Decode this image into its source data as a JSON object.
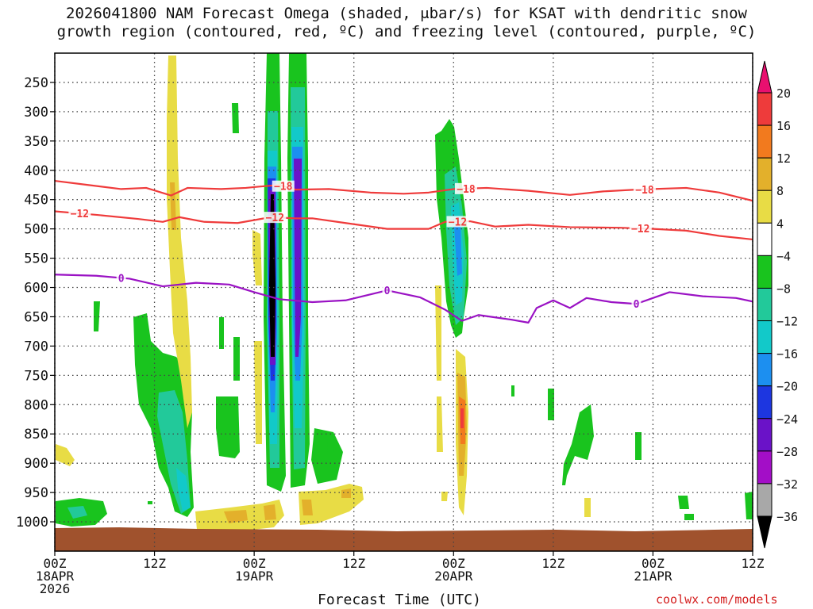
{
  "chart_data": {
    "type": "heatmap",
    "title_line1": "2026041800 NAM Forecast Omega (shaded, μbar/s) for KSAT with dendritic snow",
    "title_line2": "growth region (contoured, red, ºC) and freezing level (contoured, purple, ºC)",
    "xlabel": "Forecast Time (UTC)",
    "credit": "coolwx.com/models",
    "x_range_hours": [
      0,
      84
    ],
    "y_range_hpa": [
      200,
      1050
    ],
    "x_ticks": [
      {
        "hour": 0,
        "line1": "00Z",
        "line2": "18APR",
        "line3": "2026"
      },
      {
        "hour": 12,
        "line1": "12Z",
        "line2": "",
        "line3": ""
      },
      {
        "hour": 24,
        "line1": "00Z",
        "line2": "19APR",
        "line3": ""
      },
      {
        "hour": 36,
        "line1": "12Z",
        "line2": "",
        "line3": ""
      },
      {
        "hour": 48,
        "line1": "00Z",
        "line2": "20APR",
        "line3": ""
      },
      {
        "hour": 60,
        "line1": "12Z",
        "line2": "",
        "line3": ""
      },
      {
        "hour": 72,
        "line1": "00Z",
        "line2": "21APR",
        "line3": ""
      },
      {
        "hour": 84,
        "line1": "12Z",
        "line2": "",
        "line3": ""
      }
    ],
    "y_ticks": [
      250,
      300,
      350,
      400,
      450,
      500,
      550,
      600,
      650,
      700,
      750,
      800,
      850,
      900,
      950,
      1000
    ],
    "colorbar": {
      "labels": [
        "20",
        "16",
        "12",
        "8",
        "4",
        "−4",
        "−8",
        "−12",
        "−16",
        "−20",
        "−24",
        "−28",
        "−32",
        "−36"
      ],
      "colors": [
        "#e8106f",
        "#ee3b3b",
        "#f27a1e",
        "#e3b02b",
        "#e8dc45",
        "#ffffff",
        "#19c41e",
        "#22c99a",
        "#12c9c9",
        "#1c8ff0",
        "#1d36e0",
        "#6a12c8",
        "#a30ec7",
        "#a8a8a8",
        "#000000"
      ]
    },
    "contours": {
      "dgz_minus18": {
        "color": "#ef3b3b",
        "label": "−18",
        "points": [
          [
            0,
            418
          ],
          [
            4,
            425
          ],
          [
            8,
            432
          ],
          [
            11,
            430
          ],
          [
            14,
            443
          ],
          [
            16,
            430
          ],
          [
            20,
            432
          ],
          [
            23,
            430
          ],
          [
            24.5,
            428
          ],
          [
            27,
            425
          ],
          [
            29,
            433
          ],
          [
            33,
            432
          ],
          [
            38,
            438
          ],
          [
            42,
            440
          ],
          [
            45,
            438
          ],
          [
            48,
            432
          ],
          [
            52,
            430
          ],
          [
            57,
            435
          ],
          [
            62,
            442
          ],
          [
            66,
            436
          ],
          [
            70,
            433
          ],
          [
            76,
            430
          ],
          [
            80,
            438
          ],
          [
            84,
            452
          ]
        ],
        "label_hours": [
          27.5,
          49.5,
          71
        ]
      },
      "dgz_minus12": {
        "color": "#ef3b3b",
        "label": "−12",
        "points": [
          [
            0,
            470
          ],
          [
            5,
            476
          ],
          [
            10,
            483
          ],
          [
            13,
            488
          ],
          [
            15,
            480
          ],
          [
            18,
            488
          ],
          [
            22,
            490
          ],
          [
            26,
            480
          ],
          [
            29,
            482
          ],
          [
            31,
            482
          ],
          [
            35,
            490
          ],
          [
            40,
            500
          ],
          [
            45,
            500
          ],
          [
            47,
            488
          ],
          [
            50,
            487
          ],
          [
            53,
            496
          ],
          [
            57,
            493
          ],
          [
            62,
            497
          ],
          [
            68,
            498
          ],
          [
            72,
            500
          ],
          [
            76,
            503
          ],
          [
            80,
            512
          ],
          [
            84,
            518
          ]
        ],
        "label_hours": [
          3,
          26.5,
          48.5,
          70.5
        ]
      },
      "freezing_0": {
        "color": "#9a12c4",
        "label": "0",
        "points": [
          [
            0,
            578
          ],
          [
            5,
            580
          ],
          [
            9,
            585
          ],
          [
            13,
            598
          ],
          [
            17,
            592
          ],
          [
            21,
            595
          ],
          [
            24,
            608
          ],
          [
            27,
            620
          ],
          [
            31,
            625
          ],
          [
            35,
            622
          ],
          [
            40,
            605
          ],
          [
            44,
            617
          ],
          [
            47,
            638
          ],
          [
            49,
            657
          ],
          [
            51,
            647
          ],
          [
            55,
            655
          ],
          [
            57,
            660
          ],
          [
            58,
            635
          ],
          [
            60,
            622
          ],
          [
            62,
            635
          ],
          [
            64,
            618
          ],
          [
            67,
            625
          ],
          [
            70,
            628
          ],
          [
            72,
            618
          ],
          [
            74,
            608
          ],
          [
            78,
            615
          ],
          [
            82,
            618
          ],
          [
            84,
            624
          ]
        ],
        "label_hours": [
          8,
          40,
          70
        ]
      }
    }
  }
}
